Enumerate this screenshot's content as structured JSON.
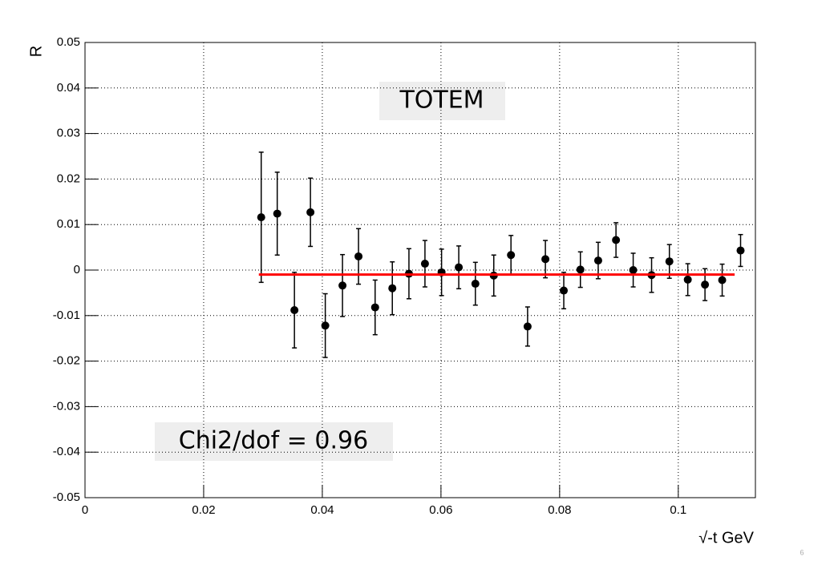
{
  "chart_data": {
    "type": "scatter",
    "x_label": "√-t GeV",
    "y_label": "R",
    "annotations": [
      "TOTEM",
      "Chi2/dof = 0.96"
    ],
    "series": [
      {
        "color": "#000000",
        "x": [
          0.0297,
          0.0324,
          0.0353,
          0.038,
          0.0405,
          0.0434,
          0.0461,
          0.0489,
          0.0518,
          0.0546,
          0.0573,
          0.0601,
          0.063,
          0.0658,
          0.0689,
          0.0718,
          0.0746,
          0.0776,
          0.0807,
          0.0835,
          0.0865,
          0.0895,
          0.0924,
          0.0955,
          0.0985,
          0.1016,
          0.1045,
          0.1074,
          0.1105
        ],
        "values": [
          0.0116,
          0.0124,
          -0.0088,
          0.0127,
          -0.0122,
          -0.0034,
          0.003,
          -0.0082,
          -0.004,
          -0.0008,
          0.0014,
          -0.0005,
          0.0006,
          -0.003,
          -0.0012,
          0.0033,
          -0.0124,
          0.0024,
          -0.0045,
          0.0001,
          0.0021,
          0.0066,
          0.0,
          -0.0011,
          0.0019,
          -0.0021,
          -0.0032,
          -0.0022,
          0.0043
        ],
        "errors": [
          0.0143,
          0.0091,
          0.0083,
          0.0075,
          0.007,
          0.0068,
          0.0061,
          0.006,
          0.0058,
          0.0055,
          0.0051,
          0.0051,
          0.0047,
          0.0047,
          0.0045,
          0.0043,
          0.0043,
          0.0041,
          0.004,
          0.0039,
          0.004,
          0.0038,
          0.0037,
          0.0038,
          0.0037,
          0.0035,
          0.0035,
          0.0035,
          0.0035
        ]
      }
    ],
    "fit": {
      "color": "#ff0000",
      "x": [
        0.0293,
        0.1095
      ],
      "values": [
        -0.001,
        -0.001
      ]
    },
    "xlim": [
      0,
      0.113
    ],
    "ylim": [
      -0.05,
      0.05
    ],
    "xticks": [
      0,
      0.02,
      0.04,
      0.06,
      0.08,
      0.1
    ],
    "yticks": [
      -0.05,
      -0.04,
      -0.03,
      -0.02,
      -0.01,
      0,
      0.01,
      0.02,
      0.03,
      0.04,
      0.05
    ],
    "grid": true
  },
  "page_number": "6"
}
